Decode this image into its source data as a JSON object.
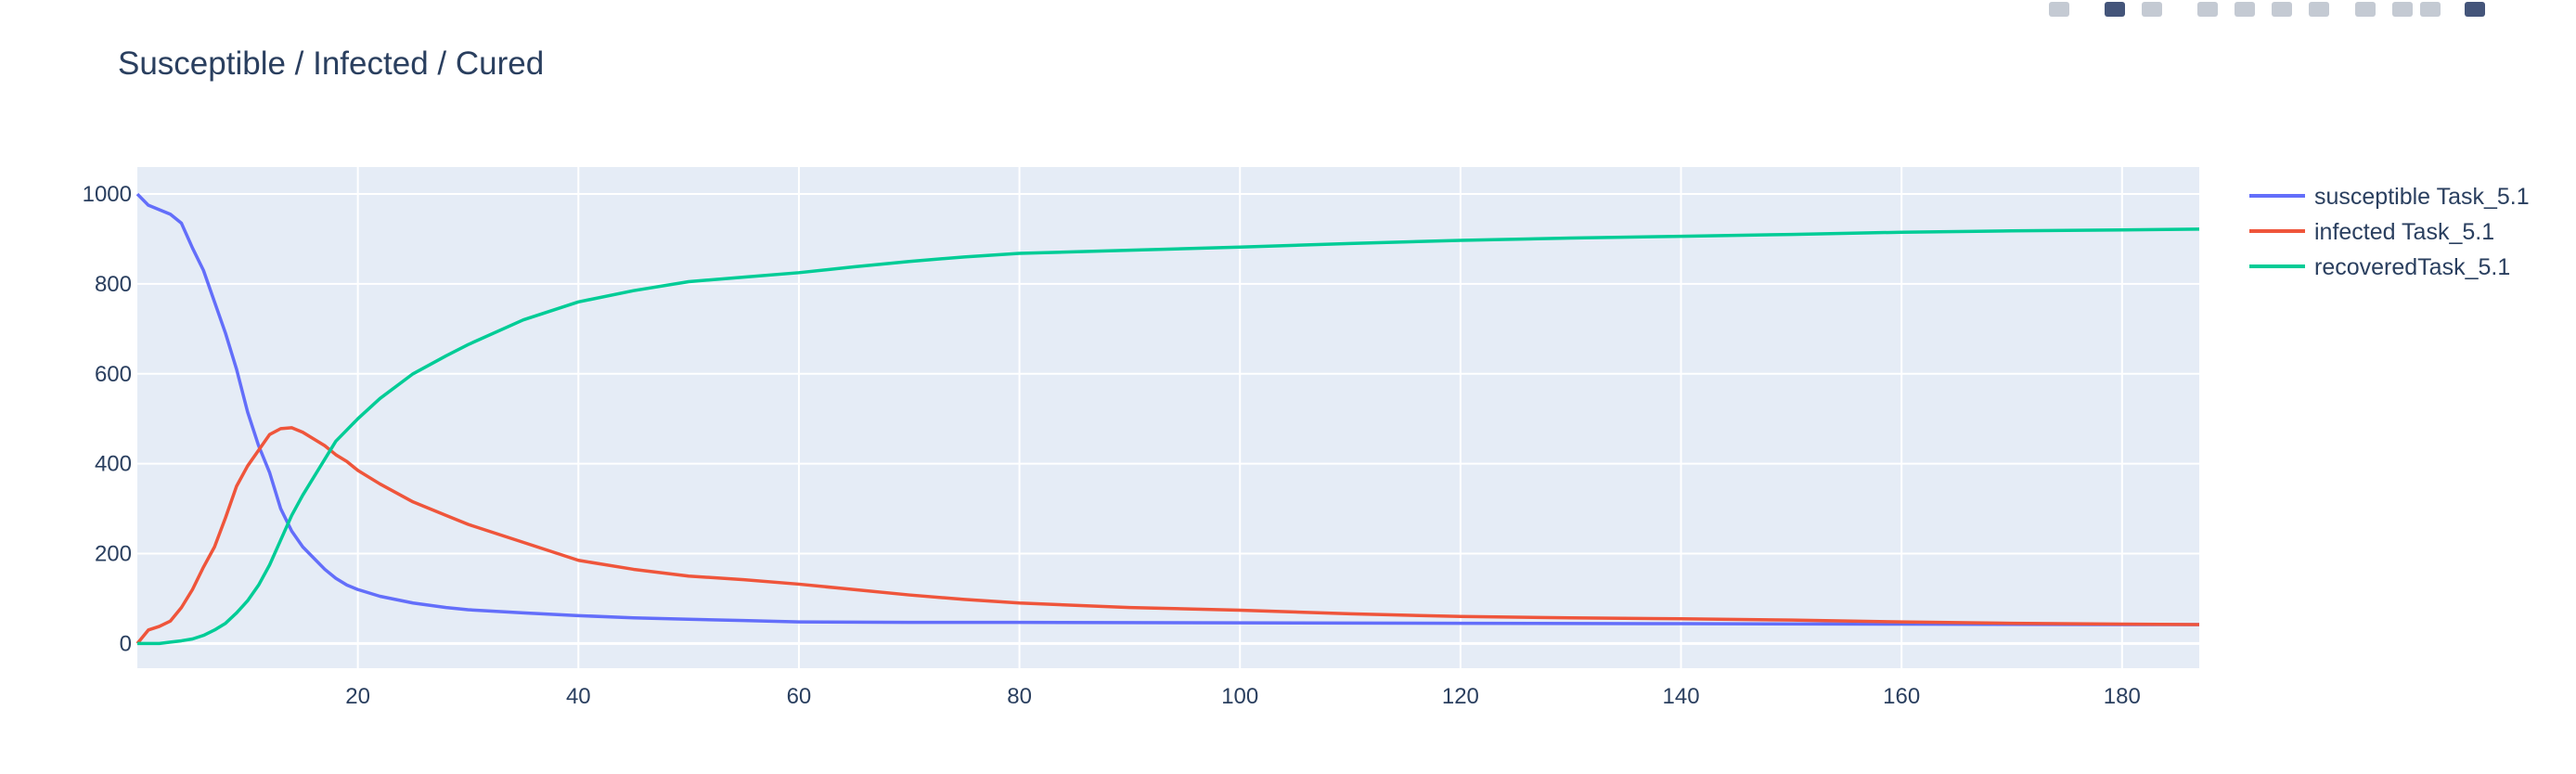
{
  "colors": {
    "plot_bg": "#e5ecf6",
    "grid": "#ffffff",
    "text": "#2a3f5f",
    "modebar_icon": "#c4cad3",
    "modebar_active": "#44557a"
  },
  "modebar": {
    "icons": [
      {
        "name": "camera-icon"
      },
      {
        "name": "zoom-icon"
      },
      {
        "name": "pan-icon"
      },
      {
        "name": "zoom-in-icon"
      },
      {
        "name": "zoom-out-icon"
      },
      {
        "name": "autoscale-icon"
      },
      {
        "name": "reset-axes-icon"
      },
      {
        "name": "spike-lines-icon"
      },
      {
        "name": "hover-closest-icon"
      },
      {
        "name": "hover-compare-icon"
      },
      {
        "name": "plotly-logo-icon"
      }
    ]
  },
  "chart_data": {
    "type": "line",
    "title": "Susceptible / Infected / Cured",
    "xlabel": "",
    "ylabel": "",
    "xlim": [
      0,
      187
    ],
    "ylim": [
      -55,
      1060
    ],
    "xticks": [
      20,
      40,
      60,
      80,
      100,
      120,
      140,
      160,
      180
    ],
    "yticks": [
      0,
      200,
      400,
      600,
      800,
      1000
    ],
    "grid": true,
    "legend": "right",
    "series": [
      {
        "name": "susceptible Task_5.1",
        "color": "#636efa",
        "points": [
          [
            0,
            1000
          ],
          [
            1,
            975
          ],
          [
            2,
            965
          ],
          [
            3,
            955
          ],
          [
            4,
            935
          ],
          [
            5,
            880
          ],
          [
            6,
            830
          ],
          [
            7,
            760
          ],
          [
            8,
            690
          ],
          [
            9,
            610
          ],
          [
            10,
            515
          ],
          [
            11,
            440
          ],
          [
            12,
            380
          ],
          [
            13,
            300
          ],
          [
            14,
            250
          ],
          [
            15,
            215
          ],
          [
            16,
            190
          ],
          [
            17,
            165
          ],
          [
            18,
            145
          ],
          [
            19,
            130
          ],
          [
            20,
            120
          ],
          [
            22,
            105
          ],
          [
            25,
            90
          ],
          [
            28,
            80
          ],
          [
            30,
            75
          ],
          [
            35,
            68
          ],
          [
            40,
            62
          ],
          [
            45,
            57
          ],
          [
            50,
            54
          ],
          [
            55,
            51
          ],
          [
            60,
            48
          ],
          [
            70,
            47
          ],
          [
            80,
            47
          ],
          [
            100,
            46
          ],
          [
            120,
            45
          ],
          [
            140,
            44
          ],
          [
            160,
            43
          ],
          [
            180,
            42
          ],
          [
            187,
            42
          ]
        ]
      },
      {
        "name": "infected Task_5.1",
        "color": "#ef553b",
        "points": [
          [
            0,
            0
          ],
          [
            1,
            30
          ],
          [
            2,
            38
          ],
          [
            3,
            50
          ],
          [
            4,
            80
          ],
          [
            5,
            120
          ],
          [
            6,
            170
          ],
          [
            7,
            215
          ],
          [
            8,
            280
          ],
          [
            9,
            350
          ],
          [
            10,
            395
          ],
          [
            11,
            430
          ],
          [
            12,
            465
          ],
          [
            13,
            478
          ],
          [
            14,
            480
          ],
          [
            15,
            470
          ],
          [
            16,
            455
          ],
          [
            17,
            440
          ],
          [
            18,
            420
          ],
          [
            19,
            405
          ],
          [
            20,
            385
          ],
          [
            22,
            355
          ],
          [
            25,
            315
          ],
          [
            28,
            285
          ],
          [
            30,
            265
          ],
          [
            35,
            225
          ],
          [
            40,
            185
          ],
          [
            45,
            165
          ],
          [
            50,
            150
          ],
          [
            55,
            142
          ],
          [
            60,
            132
          ],
          [
            65,
            120
          ],
          [
            70,
            108
          ],
          [
            75,
            98
          ],
          [
            80,
            90
          ],
          [
            90,
            80
          ],
          [
            100,
            74
          ],
          [
            110,
            66
          ],
          [
            120,
            60
          ],
          [
            130,
            57
          ],
          [
            140,
            55
          ],
          [
            150,
            52
          ],
          [
            160,
            48
          ],
          [
            170,
            45
          ],
          [
            180,
            43
          ],
          [
            187,
            42
          ]
        ]
      },
      {
        "name": "recoveredTask_5.1",
        "color": "#00cc96",
        "points": [
          [
            0,
            0
          ],
          [
            1,
            0
          ],
          [
            2,
            0
          ],
          [
            3,
            3
          ],
          [
            4,
            6
          ],
          [
            5,
            10
          ],
          [
            6,
            18
          ],
          [
            7,
            30
          ],
          [
            8,
            45
          ],
          [
            9,
            68
          ],
          [
            10,
            95
          ],
          [
            11,
            130
          ],
          [
            12,
            175
          ],
          [
            13,
            230
          ],
          [
            14,
            285
          ],
          [
            15,
            330
          ],
          [
            16,
            370
          ],
          [
            17,
            410
          ],
          [
            18,
            450
          ],
          [
            19,
            475
          ],
          [
            20,
            500
          ],
          [
            22,
            545
          ],
          [
            25,
            600
          ],
          [
            28,
            640
          ],
          [
            30,
            665
          ],
          [
            35,
            720
          ],
          [
            40,
            760
          ],
          [
            45,
            785
          ],
          [
            50,
            805
          ],
          [
            55,
            815
          ],
          [
            60,
            825
          ],
          [
            65,
            838
          ],
          [
            70,
            850
          ],
          [
            75,
            860
          ],
          [
            80,
            868
          ],
          [
            90,
            875
          ],
          [
            100,
            882
          ],
          [
            110,
            890
          ],
          [
            120,
            897
          ],
          [
            130,
            902
          ],
          [
            140,
            906
          ],
          [
            150,
            910
          ],
          [
            160,
            915
          ],
          [
            170,
            918
          ],
          [
            180,
            920
          ],
          [
            187,
            922
          ]
        ]
      }
    ]
  }
}
